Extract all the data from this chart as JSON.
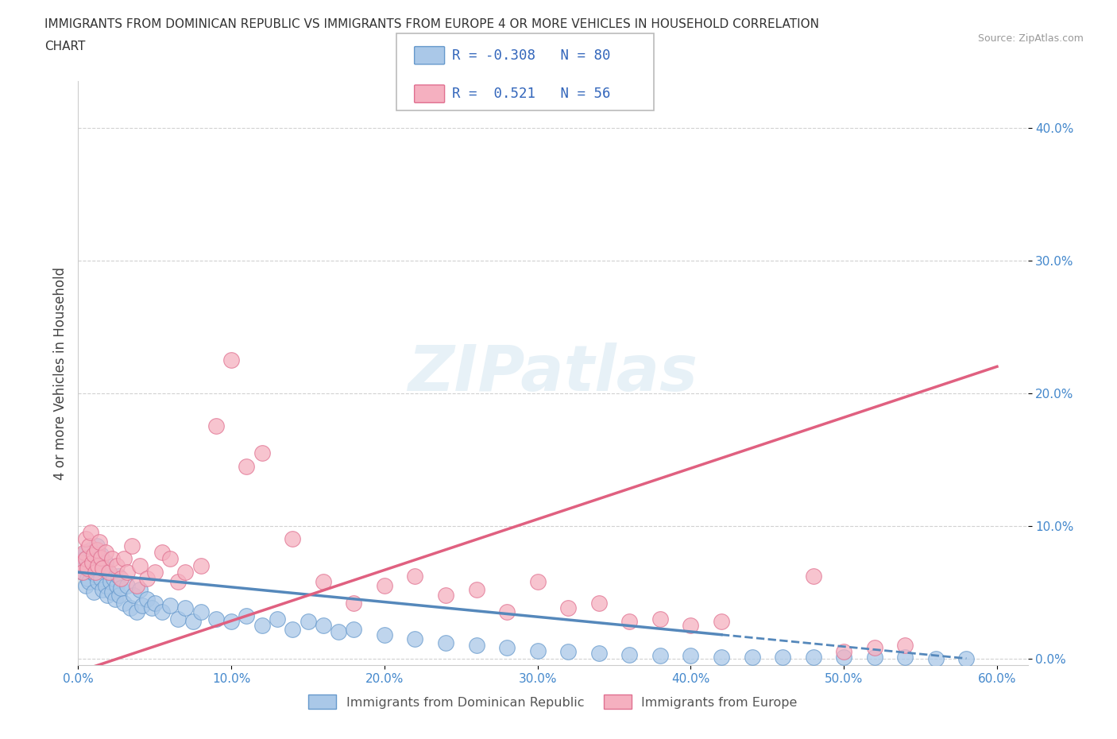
{
  "title_line1": "IMMIGRANTS FROM DOMINICAN REPUBLIC VS IMMIGRANTS FROM EUROPE 4 OR MORE VEHICLES IN HOUSEHOLD CORRELATION",
  "title_line2": "CHART",
  "source_text": "Source: ZipAtlas.com",
  "ylabel": "4 or more Vehicles in Household",
  "xlim": [
    0.0,
    0.62
  ],
  "ylim": [
    -0.005,
    0.435
  ],
  "xticks": [
    0.0,
    0.1,
    0.2,
    0.3,
    0.4,
    0.5,
    0.6
  ],
  "xticklabels": [
    "0.0%",
    "10.0%",
    "20.0%",
    "30.0%",
    "40.0%",
    "50.0%",
    "60.0%"
  ],
  "yticks": [
    0.0,
    0.1,
    0.2,
    0.3,
    0.4
  ],
  "yticklabels": [
    "0.0%",
    "10.0%",
    "20.0%",
    "30.0%",
    "40.0%"
  ],
  "blue_color": "#aac8e8",
  "pink_color": "#f5b0c0",
  "blue_edge_color": "#6699cc",
  "pink_edge_color": "#e07090",
  "blue_line_color": "#5588bb",
  "pink_line_color": "#e06080",
  "R_blue": -0.308,
  "N_blue": 80,
  "R_pink": 0.521,
  "N_pink": 56,
  "legend_label_blue": "Immigrants from Dominican Republic",
  "legend_label_pink": "Immigrants from Europe",
  "watermark": "ZIPatlas",
  "blue_line_start_x": 0.0,
  "blue_line_start_y": 0.065,
  "blue_line_end_x": 0.58,
  "blue_line_end_y": 0.0,
  "blue_line_solid_end_x": 0.42,
  "pink_line_start_x": 0.0,
  "pink_line_start_y": -0.01,
  "pink_line_end_x": 0.6,
  "pink_line_end_y": 0.22,
  "blue_scatter_x": [
    0.002,
    0.003,
    0.004,
    0.005,
    0.005,
    0.006,
    0.007,
    0.007,
    0.008,
    0.008,
    0.009,
    0.01,
    0.01,
    0.011,
    0.012,
    0.012,
    0.013,
    0.014,
    0.015,
    0.015,
    0.016,
    0.017,
    0.018,
    0.018,
    0.019,
    0.02,
    0.021,
    0.022,
    0.023,
    0.024,
    0.025,
    0.026,
    0.027,
    0.028,
    0.03,
    0.032,
    0.034,
    0.036,
    0.038,
    0.04,
    0.042,
    0.045,
    0.048,
    0.05,
    0.055,
    0.06,
    0.065,
    0.07,
    0.075,
    0.08,
    0.09,
    0.1,
    0.11,
    0.12,
    0.13,
    0.14,
    0.15,
    0.16,
    0.17,
    0.18,
    0.2,
    0.22,
    0.24,
    0.26,
    0.28,
    0.3,
    0.32,
    0.34,
    0.36,
    0.38,
    0.4,
    0.42,
    0.44,
    0.46,
    0.48,
    0.5,
    0.52,
    0.54,
    0.56,
    0.58
  ],
  "blue_scatter_y": [
    0.07,
    0.065,
    0.075,
    0.055,
    0.08,
    0.06,
    0.072,
    0.058,
    0.068,
    0.082,
    0.065,
    0.076,
    0.05,
    0.063,
    0.07,
    0.085,
    0.058,
    0.075,
    0.06,
    0.078,
    0.052,
    0.068,
    0.055,
    0.072,
    0.048,
    0.065,
    0.058,
    0.05,
    0.06,
    0.045,
    0.055,
    0.062,
    0.048,
    0.053,
    0.042,
    0.055,
    0.038,
    0.048,
    0.035,
    0.052,
    0.04,
    0.045,
    0.038,
    0.042,
    0.035,
    0.04,
    0.03,
    0.038,
    0.028,
    0.035,
    0.03,
    0.028,
    0.032,
    0.025,
    0.03,
    0.022,
    0.028,
    0.025,
    0.02,
    0.022,
    0.018,
    0.015,
    0.012,
    0.01,
    0.008,
    0.006,
    0.005,
    0.004,
    0.003,
    0.002,
    0.002,
    0.001,
    0.001,
    0.001,
    0.001,
    0.001,
    0.001,
    0.001,
    0.0,
    0.0
  ],
  "pink_scatter_x": [
    0.002,
    0.003,
    0.004,
    0.005,
    0.005,
    0.006,
    0.007,
    0.008,
    0.009,
    0.01,
    0.011,
    0.012,
    0.013,
    0.014,
    0.015,
    0.016,
    0.018,
    0.02,
    0.022,
    0.025,
    0.028,
    0.03,
    0.032,
    0.035,
    0.038,
    0.04,
    0.045,
    0.05,
    0.055,
    0.06,
    0.065,
    0.07,
    0.08,
    0.09,
    0.1,
    0.11,
    0.12,
    0.14,
    0.16,
    0.18,
    0.2,
    0.22,
    0.24,
    0.26,
    0.28,
    0.3,
    0.32,
    0.34,
    0.36,
    0.38,
    0.4,
    0.42,
    0.48,
    0.5,
    0.52,
    0.54
  ],
  "pink_scatter_y": [
    0.072,
    0.065,
    0.08,
    0.075,
    0.09,
    0.068,
    0.085,
    0.095,
    0.072,
    0.078,
    0.065,
    0.082,
    0.07,
    0.088,
    0.076,
    0.068,
    0.08,
    0.065,
    0.075,
    0.07,
    0.06,
    0.075,
    0.065,
    0.085,
    0.055,
    0.07,
    0.06,
    0.065,
    0.08,
    0.075,
    0.058,
    0.065,
    0.07,
    0.175,
    0.225,
    0.145,
    0.155,
    0.09,
    0.058,
    0.042,
    0.055,
    0.062,
    0.048,
    0.052,
    0.035,
    0.058,
    0.038,
    0.042,
    0.028,
    0.03,
    0.025,
    0.028,
    0.062,
    0.005,
    0.008,
    0.01
  ]
}
